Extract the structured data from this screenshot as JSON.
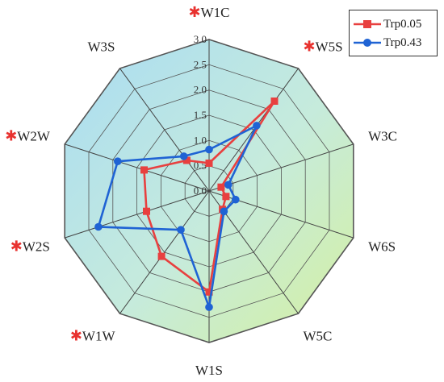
{
  "chart_data": {
    "type": "radar",
    "axes": [
      "W1C",
      "W5S",
      "W3C",
      "W6S",
      "W5C",
      "W1S",
      "W1W",
      "W2S",
      "W2W",
      "W3S"
    ],
    "starred": [
      true,
      true,
      false,
      false,
      false,
      false,
      true,
      true,
      true,
      false
    ],
    "rlim": [
      0,
      3.0
    ],
    "ticks": [
      "0.0",
      "0.5",
      "1.0",
      "1.5",
      "2.0",
      "2.5",
      "3.0"
    ],
    "grid": true,
    "legend_position": "top-right",
    "series": [
      {
        "name": "Trp0.05",
        "color": "#e8403f",
        "marker": "square",
        "values": [
          0.55,
          2.2,
          0.25,
          0.35,
          0.45,
          2.0,
          1.6,
          1.3,
          1.35,
          0.75
        ]
      },
      {
        "name": "Trp0.43",
        "color": "#1f63d4",
        "marker": "circle",
        "values": [
          0.82,
          1.6,
          0.4,
          0.55,
          0.5,
          2.3,
          0.95,
          2.3,
          1.9,
          0.85
        ]
      }
    ]
  }
}
